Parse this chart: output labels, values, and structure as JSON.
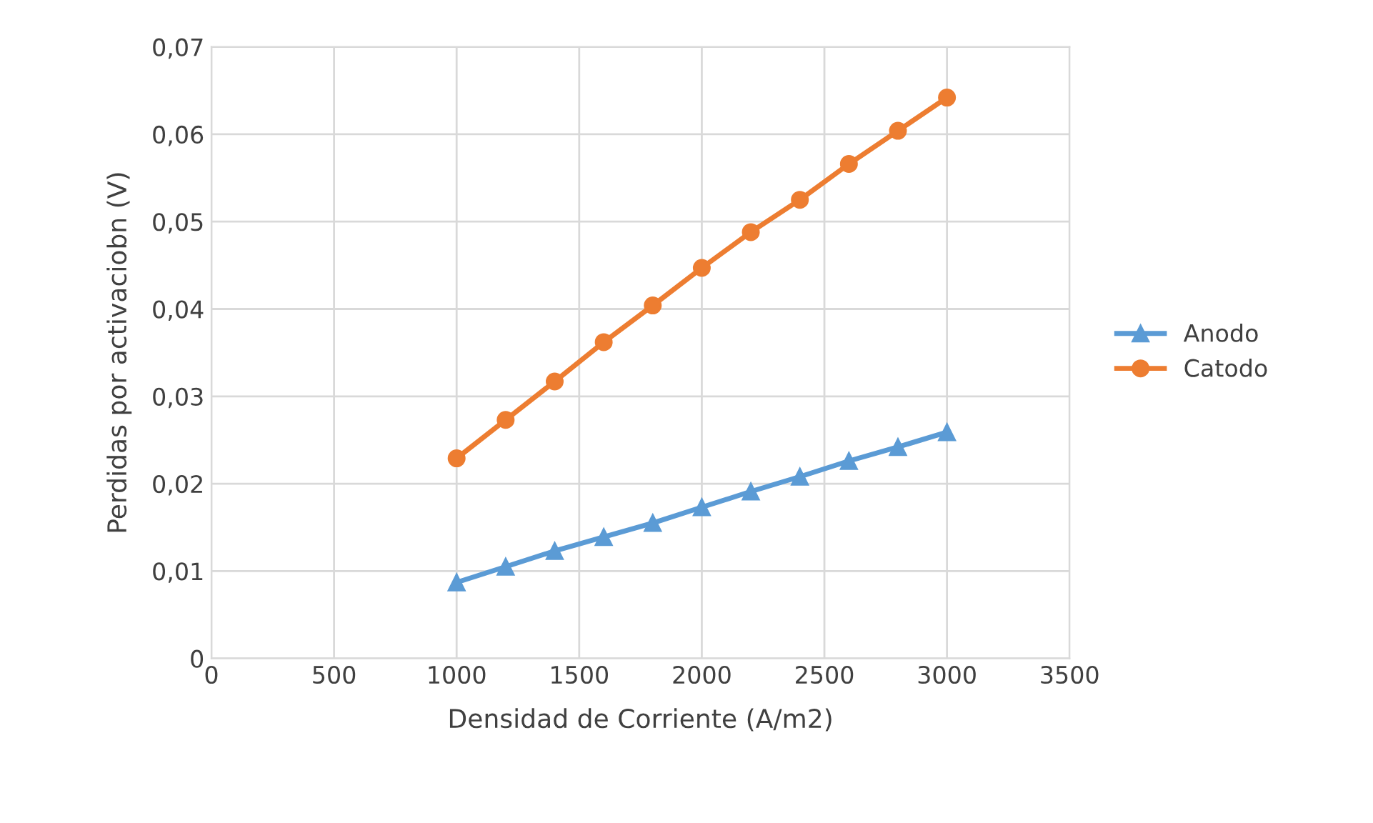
{
  "chart_data": {
    "type": "line",
    "xlabel": "Densidad de Corriente (A/m2)",
    "ylabel": "Perdidas por activaciobn (V)",
    "x": [
      1000,
      1200,
      1400,
      1600,
      1800,
      2000,
      2200,
      2400,
      2600,
      2800,
      3000
    ],
    "series": [
      {
        "name": "Anodo",
        "color": "#5b9bd5",
        "marker": "triangle",
        "values": [
          0.0087,
          0.0105,
          0.0123,
          0.0139,
          0.0155,
          0.0173,
          0.0191,
          0.0208,
          0.0226,
          0.0242,
          0.0259
        ]
      },
      {
        "name": "Catodo",
        "color": "#ed7d31",
        "marker": "circle",
        "values": [
          0.0229,
          0.0273,
          0.0317,
          0.0362,
          0.0404,
          0.0447,
          0.0488,
          0.0525,
          0.0566,
          0.0604,
          0.0642
        ]
      }
    ],
    "xlim": [
      0,
      3500
    ],
    "xticks": [
      0,
      500,
      1000,
      1500,
      2000,
      2500,
      3000,
      3500
    ],
    "ylim": [
      0,
      0.07
    ],
    "yticks": [
      {
        "value": 0,
        "label": "0"
      },
      {
        "value": 0.01,
        "label": "0,01"
      },
      {
        "value": 0.02,
        "label": "0,02"
      },
      {
        "value": 0.03,
        "label": "0,03"
      },
      {
        "value": 0.04,
        "label": "0,04"
      },
      {
        "value": 0.05,
        "label": "0,05"
      },
      {
        "value": 0.06,
        "label": "0,06"
      },
      {
        "value": 0.07,
        "label": "0,07"
      }
    ],
    "grid": true,
    "legend": "right",
    "line_style": "solid"
  }
}
